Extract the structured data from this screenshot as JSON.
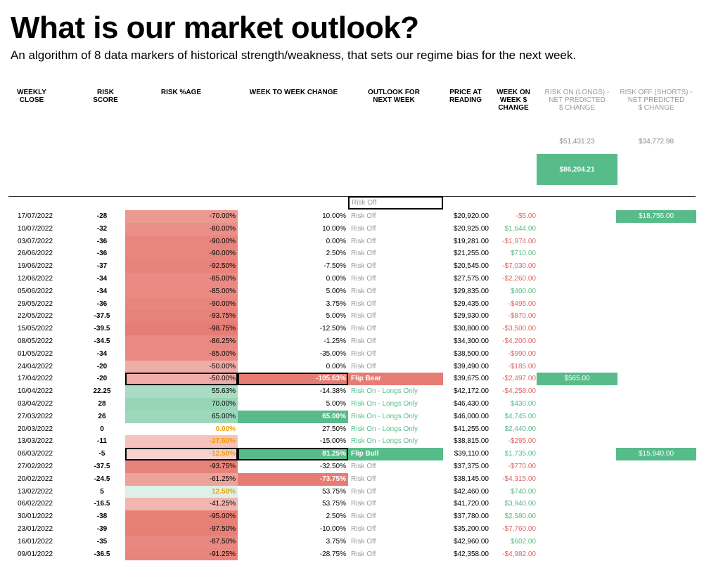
{
  "title": "What is our market outlook?",
  "subtitle": "An algorithm of 8 data markers of historical strength/weakness, that sets our regime bias for the next week.",
  "headers": {
    "weekly_close": "WEEKLY\nCLOSE",
    "risk_score": "RISK\nSCORE",
    "risk_pct": "RISK %AGE",
    "wow_change": "WEEK TO WEEK CHANGE",
    "outlook": "OUTLOOK FOR\nNEXT WEEK",
    "price": "PRICE AT\nREADING",
    "dollar_change": "WEEK ON\nWEEK $\nCHANGE",
    "risk_on": "RISK ON (LONGS) -\nNET PREDICTED\n$ CHANGE",
    "risk_off": "RISK OFF (SHORTS) -\nNET PREDICTED\n$ CHANGE"
  },
  "totals": {
    "risk_on": "$51,431.23",
    "risk_off": "$34,772.98",
    "combined": "$86,204.21"
  },
  "current_outlook": "Risk Off",
  "colors": {
    "green": "#57bb8a",
    "red": "#e67c73",
    "orange": "#f29900"
  },
  "rows": [
    {
      "date": "17/07/2022",
      "score": "-28",
      "pct": "-70.00%",
      "pct_value": -70,
      "wow": "10.00%",
      "outlook": "Risk Off",
      "price": "$20,920.00",
      "chg": "-$5.00",
      "ron": "",
      "roff": "$18,755.00"
    },
    {
      "date": "10/07/2022",
      "score": "-32",
      "pct": "-80.00%",
      "pct_value": -80,
      "wow": "10.00%",
      "outlook": "Risk Off",
      "price": "$20,925.00",
      "chg": "$1,644.00",
      "ron": "",
      "roff": ""
    },
    {
      "date": "03/07/2022",
      "score": "-36",
      "pct": "-90.00%",
      "pct_value": -90,
      "wow": "0.00%",
      "outlook": "Risk Off",
      "price": "$19,281.00",
      "chg": "-$1,974.00",
      "ron": "",
      "roff": ""
    },
    {
      "date": "26/06/2022",
      "score": "-36",
      "pct": "-90.00%",
      "pct_value": -90,
      "wow": "2.50%",
      "outlook": "Risk Off",
      "price": "$21,255.00",
      "chg": "$710.00",
      "ron": "",
      "roff": ""
    },
    {
      "date": "19/06/2022",
      "score": "-37",
      "pct": "-92.50%",
      "pct_value": -92.5,
      "wow": "-7.50%",
      "outlook": "Risk Off",
      "price": "$20,545.00",
      "chg": "-$7,030.00",
      "ron": "",
      "roff": ""
    },
    {
      "date": "12/06/2022",
      "score": "-34",
      "pct": "-85.00%",
      "pct_value": -85,
      "wow": "0.00%",
      "outlook": "Risk Off",
      "price": "$27,575.00",
      "chg": "-$2,260.00",
      "ron": "",
      "roff": ""
    },
    {
      "date": "05/06/2022",
      "score": "-34",
      "pct": "-85.00%",
      "pct_value": -85,
      "wow": "5.00%",
      "outlook": "Risk Off",
      "price": "$29,835.00",
      "chg": "$400.00",
      "ron": "",
      "roff": ""
    },
    {
      "date": "29/05/2022",
      "score": "-36",
      "pct": "-90.00%",
      "pct_value": -90,
      "wow": "3.75%",
      "outlook": "Risk Off",
      "price": "$29,435.00",
      "chg": "-$495.00",
      "ron": "",
      "roff": ""
    },
    {
      "date": "22/05/2022",
      "score": "-37.5",
      "pct": "-93.75%",
      "pct_value": -93.75,
      "wow": "5.00%",
      "outlook": "Risk Off",
      "price": "$29,930.00",
      "chg": "-$870.00",
      "ron": "",
      "roff": ""
    },
    {
      "date": "15/05/2022",
      "score": "-39.5",
      "pct": "-98.75%",
      "pct_value": -98.75,
      "wow": "-12.50%",
      "outlook": "Risk Off",
      "price": "$30,800.00",
      "chg": "-$3,500.00",
      "ron": "",
      "roff": ""
    },
    {
      "date": "08/05/2022",
      "score": "-34.5",
      "pct": "-86.25%",
      "pct_value": -86.25,
      "wow": "-1.25%",
      "outlook": "Risk Off",
      "price": "$34,300.00",
      "chg": "-$4,200.00",
      "ron": "",
      "roff": ""
    },
    {
      "date": "01/05/2022",
      "score": "-34",
      "pct": "-85.00%",
      "pct_value": -85,
      "wow": "-35.00%",
      "outlook": "Risk Off",
      "price": "$38,500.00",
      "chg": "-$990.00",
      "ron": "",
      "roff": ""
    },
    {
      "date": "24/04/2022",
      "score": "-20",
      "pct": "-50.00%",
      "pct_value": -50,
      "wow": "0.00%",
      "outlook": "Risk Off",
      "price": "$39,490.00",
      "chg": "-$185.00",
      "ron": "",
      "roff": ""
    },
    {
      "date": "17/04/2022",
      "score": "-20",
      "pct": "-50.00%",
      "pct_value": -50,
      "wow": "-105.63%",
      "outlook": "Flip Bear",
      "price": "$39,675.00",
      "chg": "-$2,497.00",
      "ron": "$565.00",
      "roff": "",
      "flip": "bear"
    },
    {
      "date": "10/04/2022",
      "score": "22.25",
      "pct": "55.63%",
      "pct_value": 55.63,
      "wow": "-14.38%",
      "outlook": "Risk On - Longs Only",
      "price": "$42,172.00",
      "chg": "-$4,258.00",
      "ron": "",
      "roff": ""
    },
    {
      "date": "03/04/2022",
      "score": "28",
      "pct": "70.00%",
      "pct_value": 70,
      "wow": "5.00%",
      "outlook": "Risk On - Longs Only",
      "price": "$46,430.00",
      "chg": "$430.00",
      "ron": "",
      "roff": ""
    },
    {
      "date": "27/03/2022",
      "score": "26",
      "pct": "65.00%",
      "pct_value": 65,
      "wow": "65.00%",
      "outlook": "Risk On - Longs Only",
      "price": "$46,000.00",
      "chg": "$4,745.00",
      "ron": "",
      "roff": "",
      "wow_fill": "green"
    },
    {
      "date": "20/03/2022",
      "score": "0",
      "pct": "0.00%",
      "pct_value": 0,
      "wow": "27.50%",
      "outlook": "Risk On - Longs Only",
      "price": "$41,255.00",
      "chg": "$2,440.00",
      "ron": "",
      "roff": ""
    },
    {
      "date": "13/03/2022",
      "score": "-11",
      "pct": "-27.50%",
      "pct_value": -27.5,
      "wow": "-15.00%",
      "outlook": "Risk On - Longs Only",
      "price": "$38,815.00",
      "chg": "-$295.00",
      "ron": "",
      "roff": ""
    },
    {
      "date": "06/03/2022",
      "score": "-5",
      "pct": "-12.50%",
      "pct_value": -12.5,
      "wow": "81.25%",
      "outlook": "Flip Bull",
      "price": "$39,110.00",
      "chg": "$1,735.00",
      "ron": "",
      "roff": "$15,940.00",
      "flip": "bull"
    },
    {
      "date": "27/02/2022",
      "score": "-37.5",
      "pct": "-93.75%",
      "pct_value": -93.75,
      "wow": "-32.50%",
      "outlook": "Risk Off",
      "price": "$37,375.00",
      "chg": "-$770.00",
      "ron": "",
      "roff": ""
    },
    {
      "date": "20/02/2022",
      "score": "-24.5",
      "pct": "-61.25%",
      "pct_value": -61.25,
      "wow": "-73.75%",
      "outlook": "Risk Off",
      "price": "$38,145.00",
      "chg": "-$4,315.00",
      "ron": "",
      "roff": "",
      "wow_fill": "red"
    },
    {
      "date": "13/02/2022",
      "score": "5",
      "pct": "12.50%",
      "pct_value": 12.5,
      "wow": "53.75%",
      "outlook": "Risk Off",
      "price": "$42,460.00",
      "chg": "$740.00",
      "ron": "",
      "roff": ""
    },
    {
      "date": "06/02/2022",
      "score": "-16.5",
      "pct": "-41.25%",
      "pct_value": -41.25,
      "wow": "53.75%",
      "outlook": "Risk Off",
      "price": "$41,720.00",
      "chg": "$3,940.00",
      "ron": "",
      "roff": ""
    },
    {
      "date": "30/01/2022",
      "score": "-38",
      "pct": "-95.00%",
      "pct_value": -95,
      "wow": "2.50%",
      "outlook": "Risk Off",
      "price": "$37,780.00",
      "chg": "$2,580.00",
      "ron": "",
      "roff": ""
    },
    {
      "date": "23/01/2022",
      "score": "-39",
      "pct": "-97.50%",
      "pct_value": -97.5,
      "wow": "-10.00%",
      "outlook": "Risk Off",
      "price": "$35,200.00",
      "chg": "-$7,760.00",
      "ron": "",
      "roff": ""
    },
    {
      "date": "16/01/2022",
      "score": "-35",
      "pct": "-87.50%",
      "pct_value": -87.5,
      "wow": "3.75%",
      "outlook": "Risk Off",
      "price": "$42,960.00",
      "chg": "$602.00",
      "ron": "",
      "roff": ""
    },
    {
      "date": "09/01/2022",
      "score": "-36.5",
      "pct": "-91.25%",
      "pct_value": -91.25,
      "wow": "-28.75%",
      "outlook": "Risk Off",
      "price": "$42,358.00",
      "chg": "-$4,982.00",
      "ron": "",
      "roff": ""
    }
  ]
}
